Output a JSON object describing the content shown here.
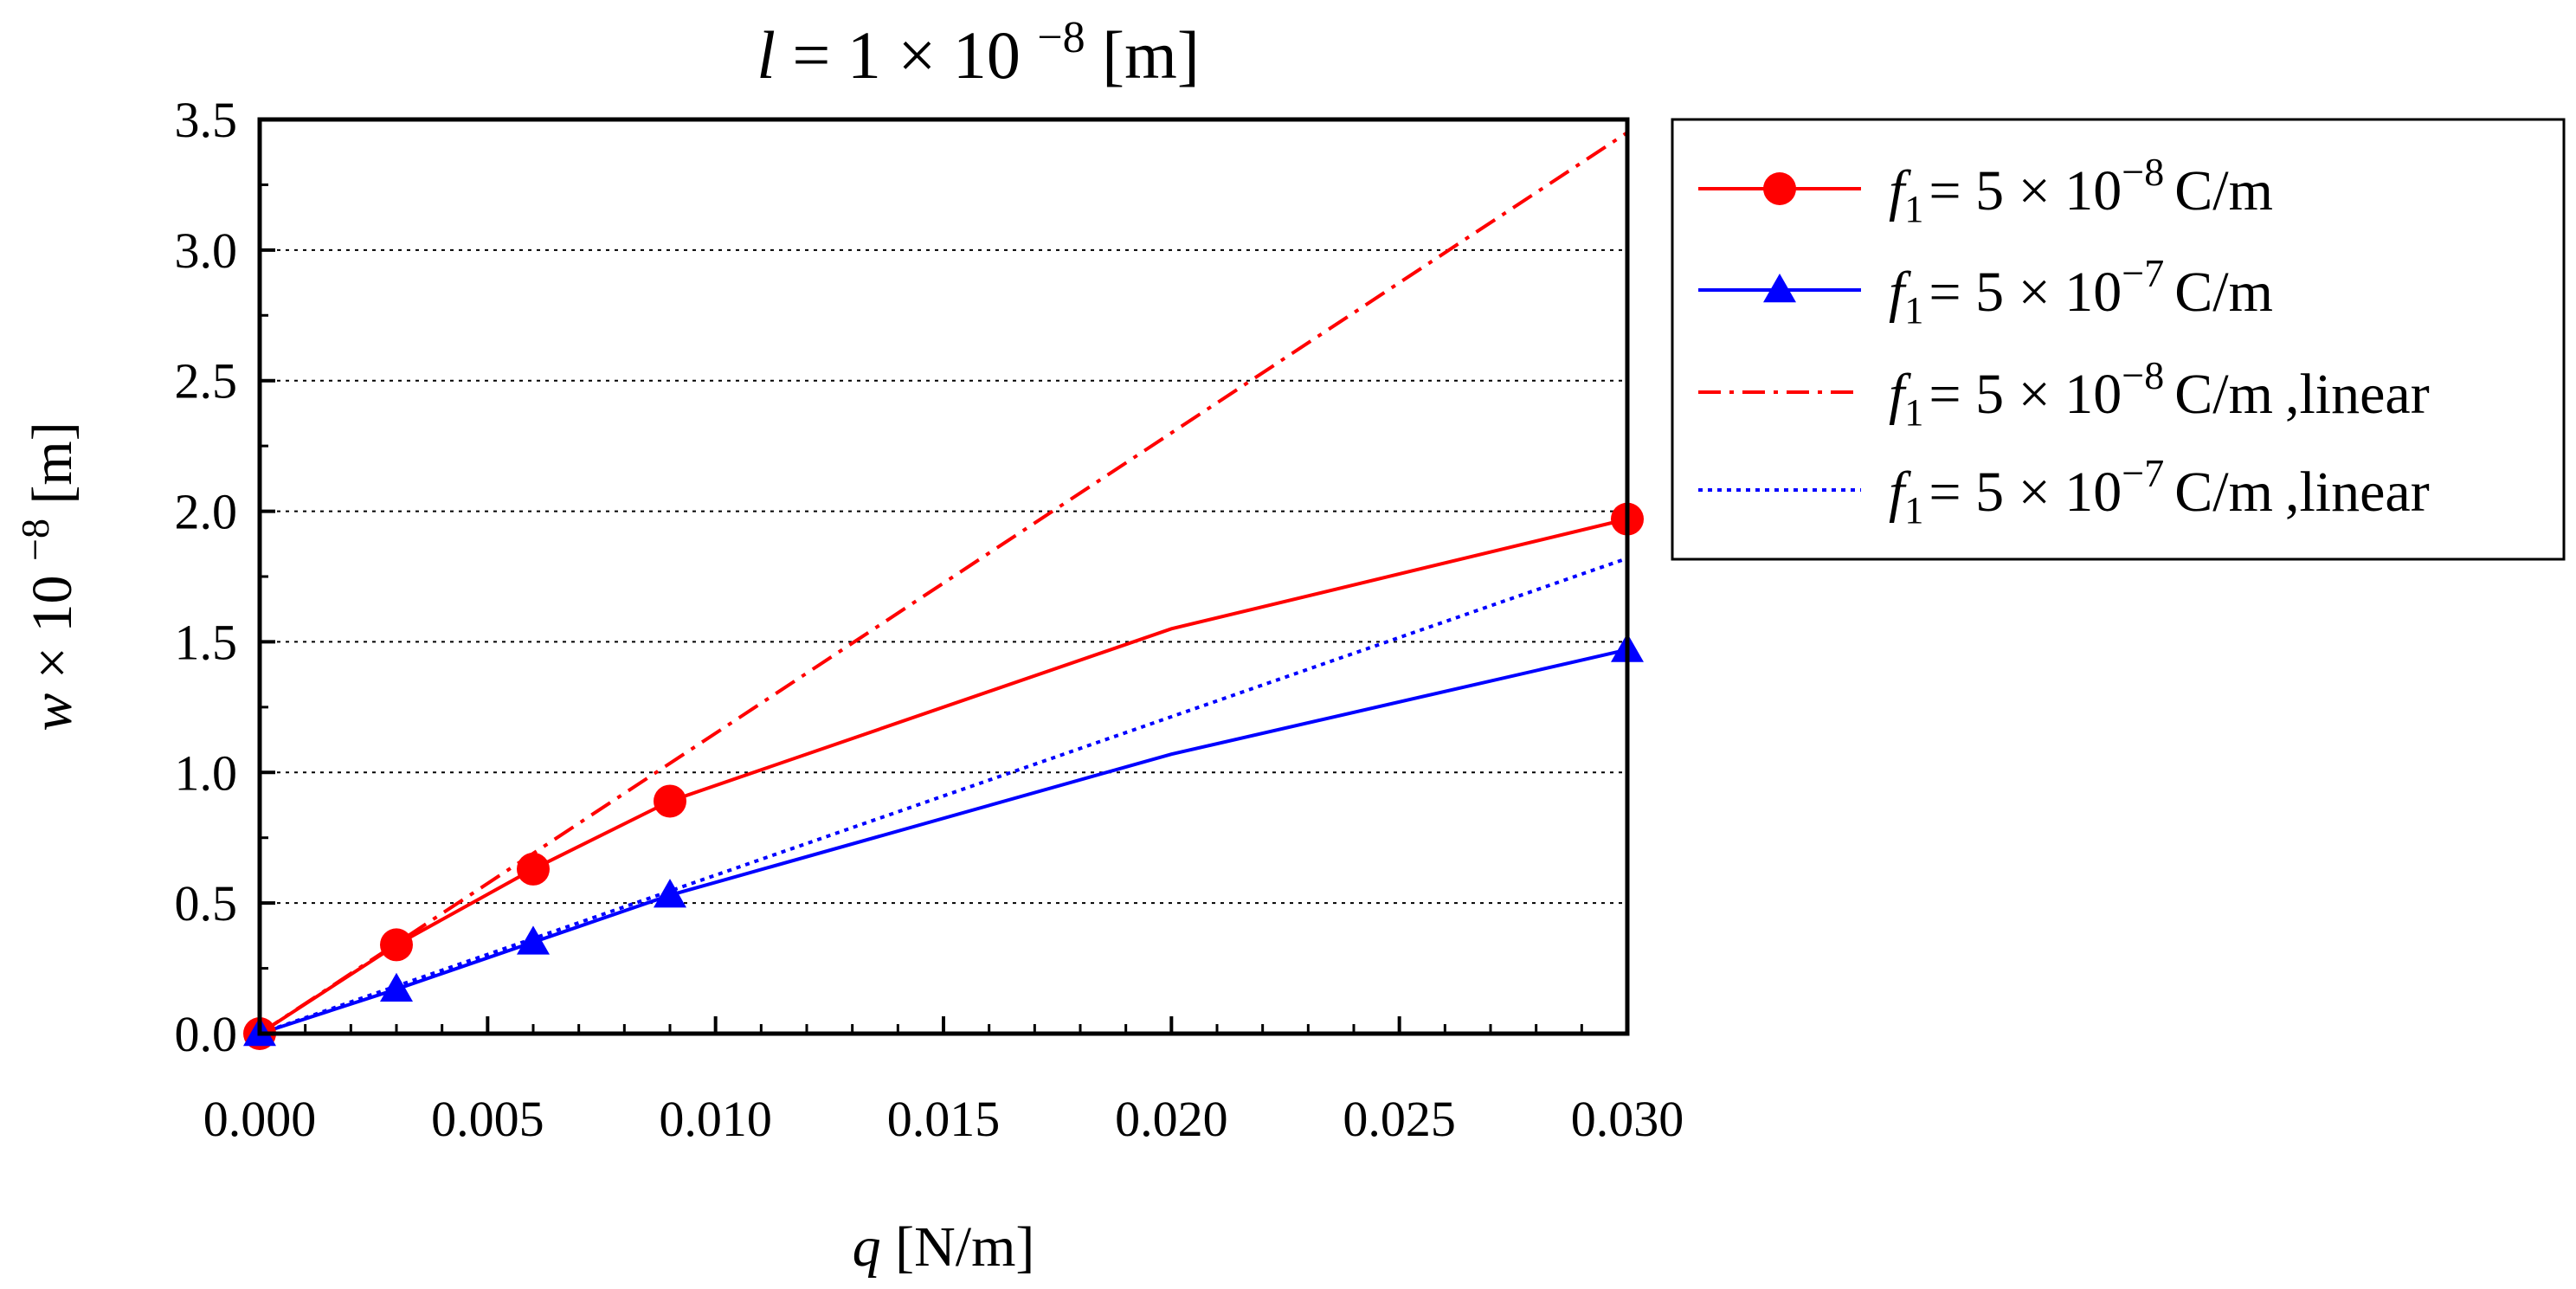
{
  "chart_data": {
    "type": "line",
    "title": {
      "var": "l",
      "eq": "= 1 × 10",
      "exp": "−8",
      "unit": "[m]"
    },
    "xlabel": {
      "var": "q",
      "unit": "[N/m]"
    },
    "ylabel": {
      "var": "w",
      "mid": "× 10",
      "exp": "−8",
      "unit": "[m]"
    },
    "xlim": [
      0,
      0.03
    ],
    "ylim": [
      0,
      3.5
    ],
    "xticks": [
      "0.000",
      "0.005",
      "0.010",
      "0.015",
      "0.020",
      "0.025",
      "0.030"
    ],
    "yticks": [
      "0.0",
      "0.5",
      "1.0",
      "1.5",
      "2.0",
      "2.5",
      "3.0",
      "3.5"
    ],
    "grid": "horizontal dotted",
    "legend_position": "right",
    "series": [
      {
        "name": "f1 = 5 × 10−8 C/m",
        "label_main": "= 5 × 10",
        "label_exp": "−8",
        "label_unit": "C/m",
        "label_suffix": "",
        "color": "#ff0000",
        "style": "solid",
        "marker": "circle",
        "x": [
          0,
          0.003,
          0.006,
          0.009,
          0.02,
          0.03
        ],
        "y": [
          0.0,
          0.34,
          0.63,
          0.89,
          1.55,
          1.97
        ],
        "marker_idx": [
          0,
          1,
          2,
          3,
          5
        ]
      },
      {
        "name": "f1 = 5 × 10−7 C/m",
        "label_main": "= 5 × 10",
        "label_exp": "−7",
        "label_unit": "C/m",
        "label_suffix": "",
        "color": "#0000ff",
        "style": "solid",
        "marker": "triangle",
        "x": [
          0,
          0.003,
          0.006,
          0.009,
          0.02,
          0.03
        ],
        "y": [
          0.0,
          0.17,
          0.35,
          0.53,
          1.07,
          1.47
        ],
        "marker_idx": [
          0,
          1,
          2,
          3,
          5
        ]
      },
      {
        "name": "f1 = 5 × 10−8 C/m ,linear",
        "label_main": "= 5 × 10",
        "label_exp": "−8",
        "label_unit": "C/m",
        "label_suffix": ",linear",
        "color": "#ff0000",
        "style": "dashdot",
        "marker": "none",
        "x": [
          0,
          0.03
        ],
        "y": [
          0.0,
          3.45
        ],
        "marker_idx": []
      },
      {
        "name": "f1 = 5 × 10−7 C/m ,linear",
        "label_main": "= 5 × 10",
        "label_exp": "−7",
        "label_unit": "C/m",
        "label_suffix": ",linear",
        "color": "#0000ff",
        "style": "dotted",
        "marker": "none",
        "x": [
          0,
          0.03
        ],
        "y": [
          0.0,
          1.82
        ],
        "marker_idx": []
      }
    ],
    "legend_symbol": {
      "var": "f",
      "sub": "1"
    }
  }
}
